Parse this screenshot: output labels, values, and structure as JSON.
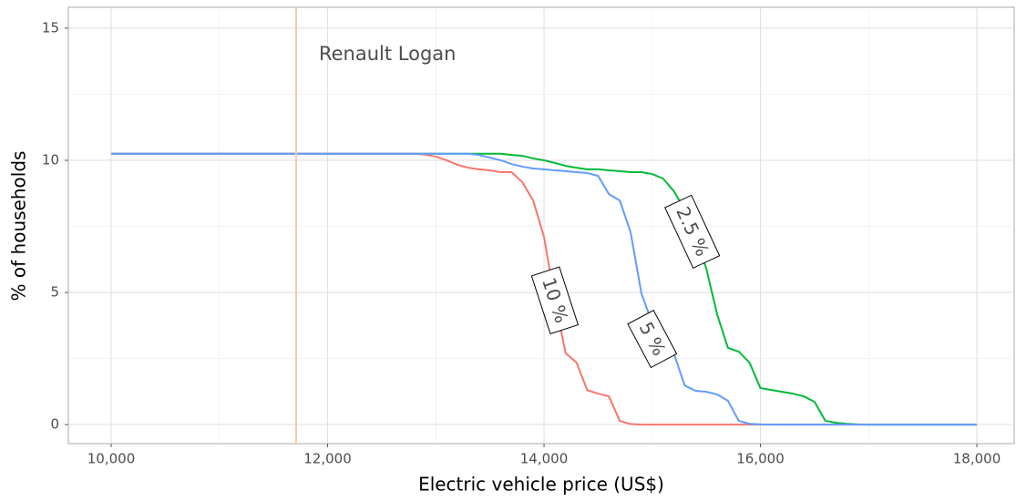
{
  "chart_data": {
    "type": "line",
    "x_label": "Electric vehicle price (US$)",
    "y_label": "% of households",
    "x": [
      10000,
      12800,
      12900,
      13000,
      13100,
      13200,
      13300,
      13400,
      13500,
      13600,
      13700,
      13800,
      13900,
      14000,
      14100,
      14200,
      14300,
      14400,
      14500,
      14600,
      14700,
      14800,
      14900,
      15000,
      15100,
      15200,
      15300,
      15400,
      15500,
      15600,
      15700,
      15800,
      15900,
      16000,
      16100,
      16200,
      16300,
      16400,
      16500,
      16600,
      16700,
      16800,
      16900,
      17000,
      18000
    ],
    "series": [
      {
        "name": "2.5 %",
        "color": "#00ba38",
        "values": [
          10.25,
          10.25,
          10.25,
          10.25,
          10.25,
          10.25,
          10.25,
          10.25,
          10.25,
          10.25,
          10.2,
          10.17,
          10.07,
          10.0,
          9.9,
          9.79,
          9.72,
          9.66,
          9.66,
          9.62,
          9.59,
          9.55,
          9.55,
          9.48,
          9.31,
          8.83,
          8.14,
          7.1,
          5.9,
          4.17,
          2.9,
          2.76,
          2.34,
          1.38,
          1.31,
          1.24,
          1.17,
          1.07,
          0.86,
          0.14,
          0.07,
          0.03,
          0.01,
          0,
          0
        ]
      },
      {
        "name": "10 %",
        "color": "#f8766d",
        "values": [
          10.25,
          10.25,
          10.22,
          10.14,
          10.0,
          9.83,
          9.72,
          9.66,
          9.62,
          9.55,
          9.55,
          9.17,
          8.48,
          7.1,
          4.7,
          2.7,
          2.35,
          1.3,
          1.17,
          1.07,
          0.14,
          0.02,
          0,
          0,
          0,
          0,
          0,
          0,
          0,
          0,
          0,
          0,
          0,
          0,
          0,
          0,
          0,
          0,
          0,
          0,
          0,
          0,
          0,
          0,
          0
        ]
      },
      {
        "name": "5 %",
        "color": "#619cff",
        "values": [
          10.25,
          10.25,
          10.25,
          10.25,
          10.25,
          10.25,
          10.25,
          10.2,
          10.1,
          10.0,
          9.86,
          9.76,
          9.69,
          9.66,
          9.62,
          9.59,
          9.55,
          9.52,
          9.41,
          8.72,
          8.48,
          7.28,
          4.97,
          3.83,
          3.14,
          2.69,
          1.48,
          1.28,
          1.24,
          1.14,
          0.9,
          0.14,
          0.03,
          0.01,
          0,
          0,
          0,
          0,
          0,
          0,
          0,
          0,
          0,
          0,
          0
        ]
      }
    ],
    "reference_line": {
      "x": 11709,
      "label": "Renault Logan",
      "color": "#f5cba7"
    },
    "xlim": [
      9604,
      18345
    ],
    "ylim": [
      -0.72,
      15.79
    ],
    "xticks": [
      {
        "value": 10000,
        "label": "10,000"
      },
      {
        "value": 12000,
        "label": "12,000"
      },
      {
        "value": 14000,
        "label": "14,000"
      },
      {
        "value": 16000,
        "label": "16,000"
      },
      {
        "value": 18000,
        "label": "18,000"
      }
    ],
    "yticks": [
      0,
      5,
      10,
      15
    ],
    "grid": true
  }
}
